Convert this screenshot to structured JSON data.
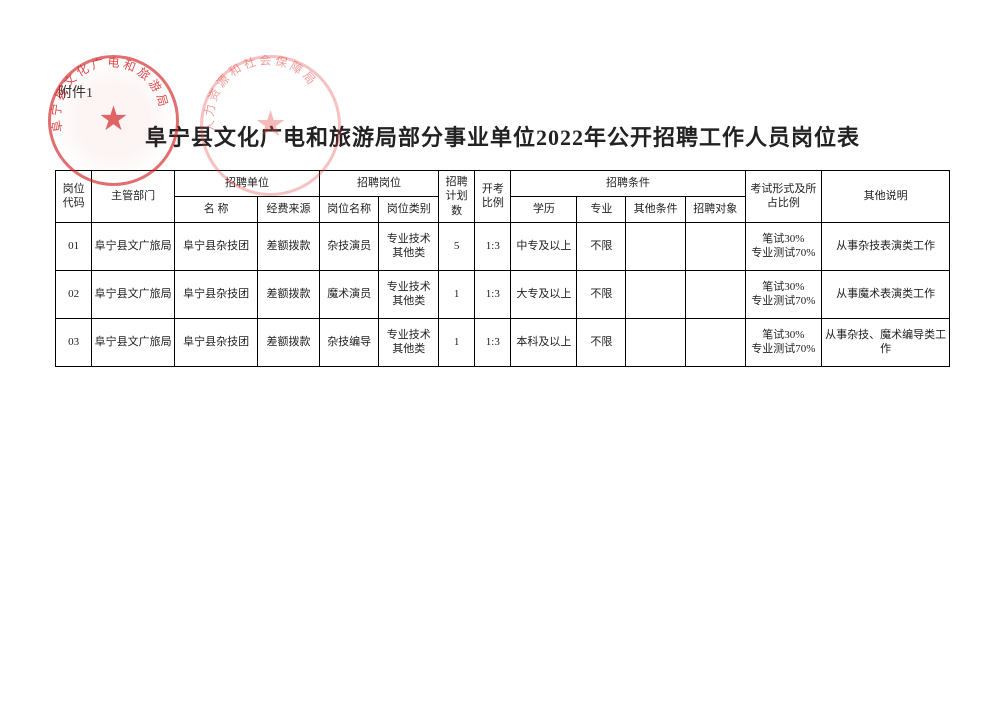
{
  "attachment_label": "附件1",
  "title": "阜宁县文化广电和旅游局部分事业单位2022年公开招聘工作人员岗位表",
  "seal1_text": "阜宁县文化广电和旅游局",
  "seal2_text": "人力资源和社会保障局",
  "headers": {
    "code": "岗位代码",
    "dept": "主管部门",
    "recruit_unit": "招聘单位",
    "unit_name": "名  称",
    "unit_fund": "经费来源",
    "recruit_post": "招聘岗位",
    "post_name": "岗位名称",
    "post_type": "岗位类别",
    "plan_count": "招聘计划数",
    "exam_ratio": "开考比例",
    "recruit_cond": "招聘条件",
    "edu": "学历",
    "major": "专业",
    "other_cond": "其他条件",
    "target": "招聘对象",
    "exam_form": "考试形式及所占比例",
    "other_note": "其他说明"
  },
  "colwidths": {
    "code": "34",
    "dept": "78",
    "unit_name": "78",
    "unit_fund": "58",
    "post_name": "56",
    "post_type": "56",
    "plan_count": "34",
    "exam_ratio": "34",
    "edu": "62",
    "major": "46",
    "other_cond": "56",
    "target": "56",
    "exam_form": "72",
    "other_note": "120"
  },
  "rows": [
    {
      "code": "01",
      "dept": "阜宁县文广旅局",
      "unit_name": "阜宁县杂技团",
      "unit_fund": "差额拨款",
      "post_name": "杂技演员",
      "post_type": "专业技术其他类",
      "plan_count": "5",
      "exam_ratio": "1:3",
      "edu": "中专及以上",
      "major": "不限",
      "other_cond": "",
      "target": "",
      "exam_form": "笔试30%\n专业测试70%",
      "other_note": "从事杂技表演类工作"
    },
    {
      "code": "02",
      "dept": "阜宁县文广旅局",
      "unit_name": "阜宁县杂技团",
      "unit_fund": "差额拨款",
      "post_name": "魔术演员",
      "post_type": "专业技术其他类",
      "plan_count": "1",
      "exam_ratio": "1:3",
      "edu": "大专及以上",
      "major": "不限",
      "other_cond": "",
      "target": "",
      "exam_form": "笔试30%\n专业测试70%",
      "other_note": "从事魔术表演类工作"
    },
    {
      "code": "03",
      "dept": "阜宁县文广旅局",
      "unit_name": "阜宁县杂技团",
      "unit_fund": "差额拨款",
      "post_name": "杂技编导",
      "post_type": "专业技术其他类",
      "plan_count": "1",
      "exam_ratio": "1:3",
      "edu": "本科及以上",
      "major": "不限",
      "other_cond": "",
      "target": "",
      "exam_form": "笔试30%\n专业测试70%",
      "other_note": "从事杂技、魔术编导类工作"
    }
  ]
}
